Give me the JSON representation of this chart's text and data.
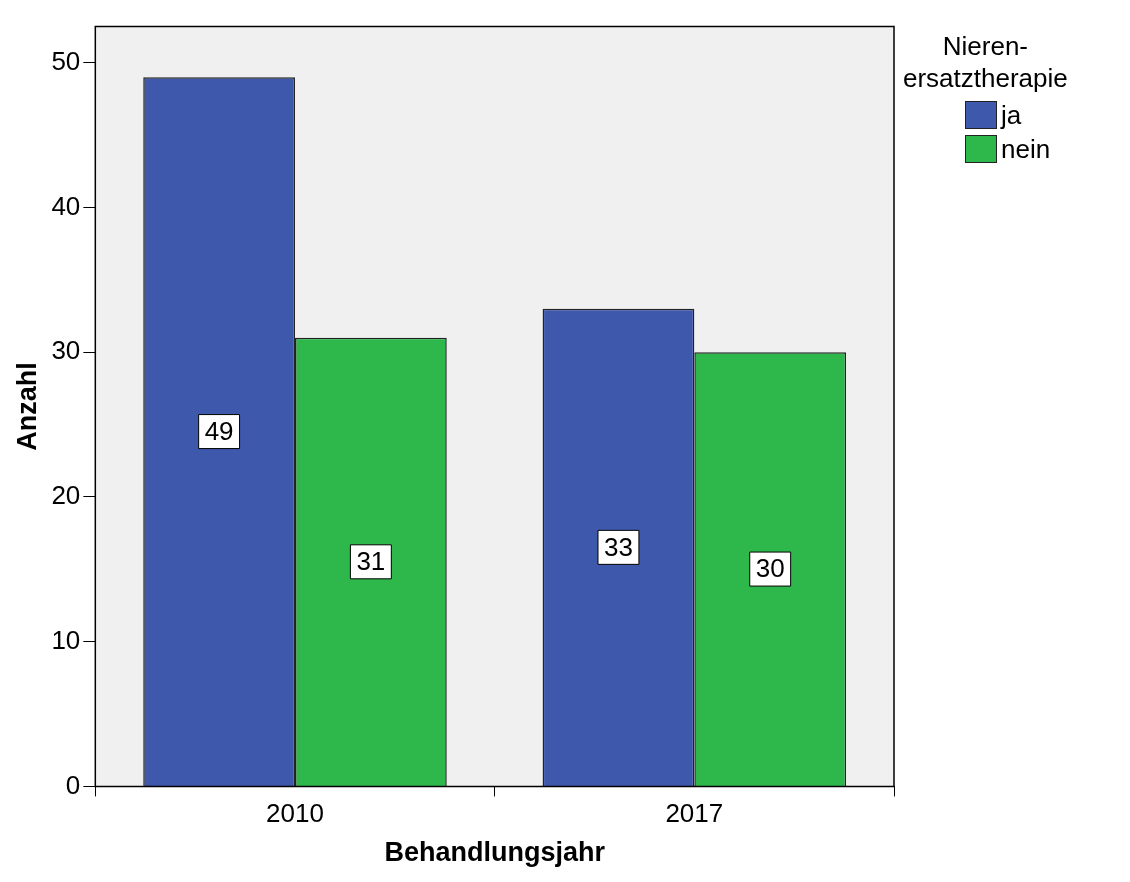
{
  "chart_data": {
    "type": "bar",
    "xlabel": "Behandlungsjahr",
    "ylabel": "Anzahl",
    "legend_title": "Nieren-\nersatztherapie",
    "categories": [
      "2010",
      "2017"
    ],
    "series": [
      {
        "name": "ja",
        "color": "#3e58ac",
        "values": [
          49,
          33
        ]
      },
      {
        "name": "nein",
        "color": "#2eb84b",
        "values": [
          31,
          30
        ]
      }
    ],
    "ylim": [
      0,
      52.5
    ],
    "yticks": [
      0,
      10,
      20,
      30,
      40,
      50
    ],
    "grid": false,
    "legend": "top right",
    "data_labels": true
  }
}
